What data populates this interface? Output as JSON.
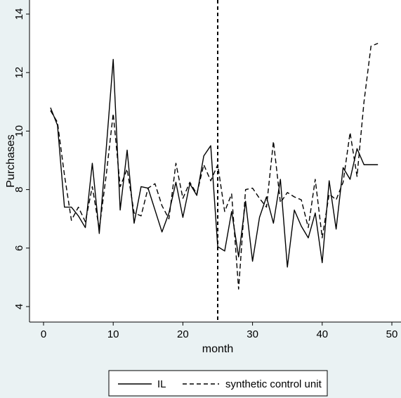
{
  "chart_data": {
    "type": "line",
    "title": "",
    "xlabel": "month",
    "ylabel": "Purchases",
    "xlim": [
      0,
      50
    ],
    "ylim": [
      3.6,
      14.2
    ],
    "xticks": [
      0,
      10,
      20,
      30,
      40,
      50
    ],
    "yticks": [
      4,
      6,
      8,
      10,
      12,
      14
    ],
    "grid": false,
    "legend": "bottom",
    "treatment_line_x": 25,
    "x": [
      1,
      2,
      3,
      4,
      5,
      6,
      7,
      8,
      9,
      10,
      11,
      12,
      13,
      14,
      15,
      16,
      17,
      18,
      19,
      20,
      21,
      22,
      23,
      24,
      25,
      26,
      27,
      28,
      29,
      30,
      31,
      32,
      33,
      34,
      35,
      36,
      37,
      38,
      39,
      40,
      41,
      42,
      43,
      44,
      45,
      46,
      47,
      48
    ],
    "series": [
      {
        "name": "IL",
        "style": "solid",
        "color": "#000000",
        "values": [
          10.8,
          10.2,
          7.4,
          7.4,
          7.1,
          6.7,
          8.9,
          6.5,
          9.4,
          12.45,
          7.3,
          9.35,
          6.85,
          8.1,
          8.05,
          7.3,
          6.55,
          7.2,
          8.25,
          7.05,
          8.2,
          7.8,
          9.15,
          9.5,
          6.05,
          5.9,
          7.25,
          5.7,
          7.6,
          5.55,
          7.05,
          7.75,
          6.85,
          8.35,
          5.35,
          7.3,
          6.75,
          6.35,
          7.2,
          5.5,
          8.3,
          6.65,
          8.75,
          8.35,
          9.4,
          8.85,
          8.85,
          8.85
        ]
      },
      {
        "name": "synthetic control unit",
        "style": "dashed",
        "color": "#000000",
        "values": [
          10.7,
          10.3,
          8.5,
          6.95,
          7.4,
          6.9,
          8.1,
          6.65,
          8.5,
          10.6,
          8.1,
          8.7,
          7.2,
          7.1,
          8.05,
          8.2,
          7.45,
          7.0,
          8.9,
          7.7,
          8.25,
          7.85,
          8.85,
          8.3,
          8.85,
          7.25,
          7.85,
          4.6,
          8.0,
          8.05,
          7.7,
          7.4,
          9.65,
          7.55,
          7.9,
          7.75,
          7.65,
          6.7,
          8.35,
          6.35,
          7.85,
          7.65,
          8.25,
          9.95,
          8.45,
          11.0,
          12.9,
          13.0
        ]
      }
    ]
  }
}
